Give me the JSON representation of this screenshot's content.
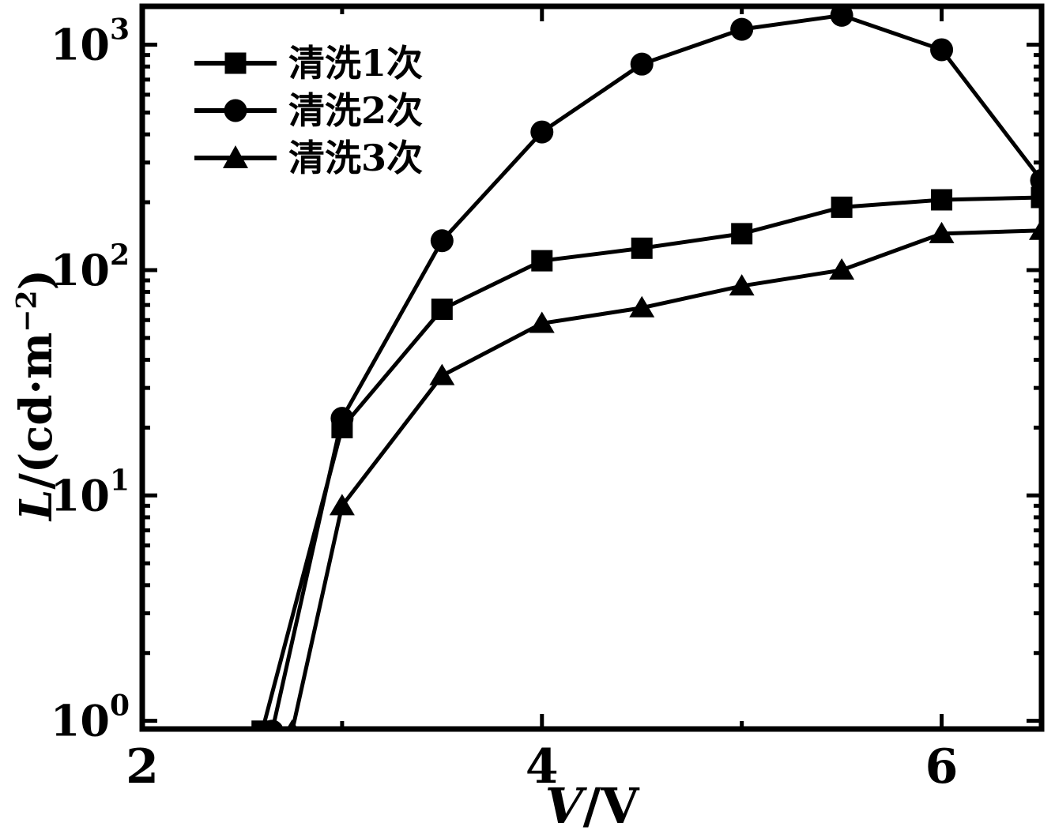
{
  "figure": {
    "background_color": "#ffffff",
    "ink_color": "#000000"
  },
  "axis_labels": {
    "x_variable": "V",
    "x_unit": "/V",
    "y_variable": "L",
    "y_unit_prefix": "/(cd·m",
    "y_unit_sup": "−2",
    "y_unit_suffix": ")"
  },
  "chart_data": {
    "type": "line",
    "title": "",
    "xlabel": "V/V",
    "ylabel": "L/(cd·m⁻²)",
    "grid": false,
    "legend_position": "top-left",
    "x_axis": {
      "min": 2,
      "max": 6.5,
      "major_ticks": [
        2,
        4,
        6
      ],
      "major_tick_labels": [
        "2",
        "4",
        "6"
      ],
      "minor_ticks": [
        3,
        5
      ]
    },
    "y_axis": {
      "scale": "log",
      "min": 0.92,
      "max": 1480,
      "major_ticks": [
        1,
        10,
        100,
        1000
      ],
      "major_tick_labels": [
        "10^0",
        "10^1",
        "10^2",
        "10^3"
      ]
    },
    "series": [
      {
        "name": "清洗1次",
        "marker": "square",
        "x": [
          2.6,
          3,
          3.5,
          4,
          4.5,
          5,
          5.5,
          6,
          6.5
        ],
        "y": [
          0.9,
          20,
          67,
          110,
          125,
          145,
          190,
          205,
          210
        ]
      },
      {
        "name": "清洗2次",
        "marker": "circle",
        "x": [
          2.65,
          3,
          3.5,
          4,
          4.5,
          5,
          5.5,
          6,
          6.5
        ],
        "y": [
          0.9,
          22,
          135,
          410,
          820,
          1170,
          1350,
          950,
          250
        ]
      },
      {
        "name": "清洗3次",
        "marker": "triangle",
        "x": [
          2.75,
          3,
          3.5,
          4,
          4.5,
          5,
          5.5,
          6,
          6.5
        ],
        "y": [
          0.9,
          9,
          34,
          58,
          68,
          85,
          100,
          145,
          150
        ]
      }
    ]
  }
}
